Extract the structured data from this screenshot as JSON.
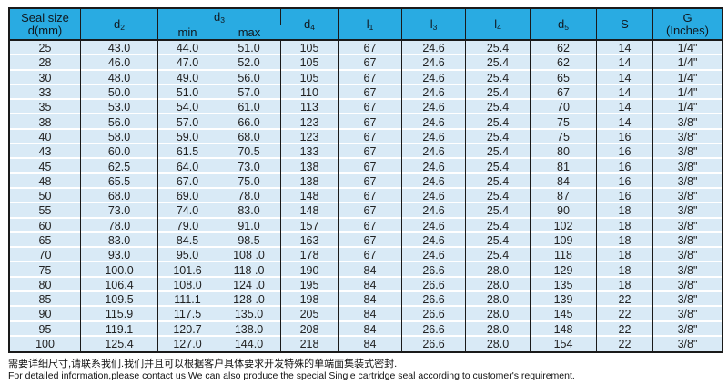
{
  "colors": {
    "header_bg": "#29abe2",
    "row_bg": "#d9eaf6",
    "border": "#1a1a1a",
    "row_separator": "#ffffff"
  },
  "table": {
    "headers": {
      "seal_size_line1": "Seal size",
      "seal_size_line2": "d(mm)",
      "d2_base": "d",
      "d2_sub": "2",
      "d3_base": "d",
      "d3_sub": "3",
      "min": "min",
      "max": "max",
      "d4_base": "d",
      "d4_sub": "4",
      "l1_base": "l",
      "l1_sub": "1",
      "l3_base": "l",
      "l3_sub": "3",
      "l4_base": "l",
      "l4_sub": "4",
      "d5_base": "d",
      "d5_sub": "5",
      "s": "S",
      "g_line1": "G",
      "g_line2": "(Inches)"
    },
    "rows": [
      [
        "25",
        "43.0",
        "44.0",
        "51.0",
        "105",
        "67",
        "24.6",
        "25.4",
        "62",
        "14",
        "1/4\""
      ],
      [
        "28",
        "46.0",
        "47.0",
        "52.0",
        "105",
        "67",
        "24.6",
        "25.4",
        "62",
        "14",
        "1/4\""
      ],
      [
        "30",
        "48.0",
        "49.0",
        "56.0",
        "105",
        "67",
        "24.6",
        "25.4",
        "65",
        "14",
        "1/4\""
      ],
      [
        "33",
        "50.0",
        "51.0",
        "57.0",
        "110",
        "67",
        "24.6",
        "25.4",
        "67",
        "14",
        "1/4\""
      ],
      [
        "35",
        "53.0",
        "54.0",
        "61.0",
        "113",
        "67",
        "24.6",
        "25.4",
        "70",
        "14",
        "1/4\""
      ],
      [
        "38",
        "56.0",
        "57.0",
        "66.0",
        "123",
        "67",
        "24.6",
        "25.4",
        "75",
        "14",
        "3/8\""
      ],
      [
        "40",
        "58.0",
        "59.0",
        "68.0",
        "123",
        "67",
        "24.6",
        "25.4",
        "75",
        "16",
        "3/8\""
      ],
      [
        "43",
        "60.0",
        "61.5",
        "70.5",
        "133",
        "67",
        "24.6",
        "25.4",
        "80",
        "16",
        "3/8\""
      ],
      [
        "45",
        "62.5",
        "64.0",
        "73.0",
        "138",
        "67",
        "24.6",
        "25.4",
        "81",
        "16",
        "3/8\""
      ],
      [
        "48",
        "65.5",
        "67.0",
        "75.0",
        "138",
        "67",
        "24.6",
        "25.4",
        "84",
        "16",
        "3/8\""
      ],
      [
        "50",
        "68.0",
        "69.0",
        "78.0",
        "148",
        "67",
        "24.6",
        "25.4",
        "87",
        "16",
        "3/8\""
      ],
      [
        "55",
        "73.0",
        "74.0",
        "83.0",
        "148",
        "67",
        "24.6",
        "25.4",
        "90",
        "18",
        "3/8\""
      ],
      [
        "60",
        "78.0",
        "79.0",
        "91.0",
        "157",
        "67",
        "24.6",
        "25.4",
        "102",
        "18",
        "3/8\""
      ],
      [
        "65",
        "83.0",
        "84.5",
        "98.5",
        "163",
        "67",
        "24.6",
        "25.4",
        "109",
        "18",
        "3/8\""
      ],
      [
        "70",
        "93.0",
        "95.0",
        "108 .0",
        "178",
        "67",
        "24.6",
        "25.4",
        "118",
        "18",
        "3/8\""
      ],
      [
        "75",
        "100.0",
        "101.6",
        "118 .0",
        "190",
        "84",
        "26.6",
        "28.0",
        "129",
        "18",
        "3/8\""
      ],
      [
        "80",
        "106.4",
        "108.0",
        "124 .0",
        "195",
        "84",
        "26.6",
        "28.0",
        "135",
        "18",
        "3/8\""
      ],
      [
        "85",
        "109.5",
        "111.1",
        "128 .0",
        "198",
        "84",
        "26.6",
        "28.0",
        "139",
        "22",
        "3/8\""
      ],
      [
        "90",
        "115.9",
        "117.5",
        "135.0",
        "205",
        "84",
        "26.6",
        "28.0",
        "145",
        "22",
        "3/8\""
      ],
      [
        "95",
        "119.1",
        "120.7",
        "138.0",
        "208",
        "84",
        "26.6",
        "28.0",
        "148",
        "22",
        "3/8\""
      ],
      [
        "100",
        "125.4",
        "127.0",
        "144.0",
        "218",
        "84",
        "26.6",
        "28.0",
        "154",
        "22",
        "3/8\""
      ]
    ]
  },
  "footer": {
    "line1_zh": "需要详细尺寸,请联系我们.我们并且可以根据客户具体要求开发特殊的单端面集装式密封.",
    "line2_en": "For detailed information,please contact us,We can also produce the special Single cartridge seal according to customer's requirement."
  }
}
